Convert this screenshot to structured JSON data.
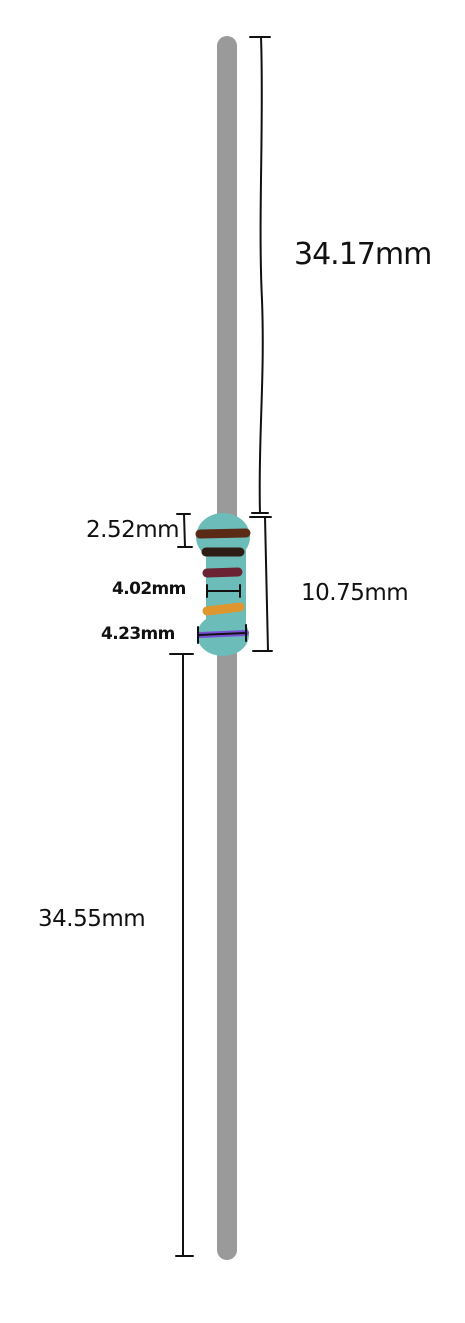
{
  "diagram": {
    "subject": "resistor",
    "colors": {
      "lead": "#9a9a9a",
      "body": "#6cbcb9",
      "dimension_line": "#111111",
      "band_1": "#5a2a16",
      "band_2": "#2e1d14",
      "band_3": "#6b2232",
      "band_4": "#e0962e",
      "band_5": "#7a4fd6"
    },
    "dimensions": {
      "top_lead_length": "34.17mm",
      "body_length": "10.75mm",
      "bottom_lead_length": "34.55mm",
      "end_cap_length": "2.52mm",
      "body_middle_diameter": "4.02mm",
      "end_cap_diameter": "4.23mm"
    }
  }
}
